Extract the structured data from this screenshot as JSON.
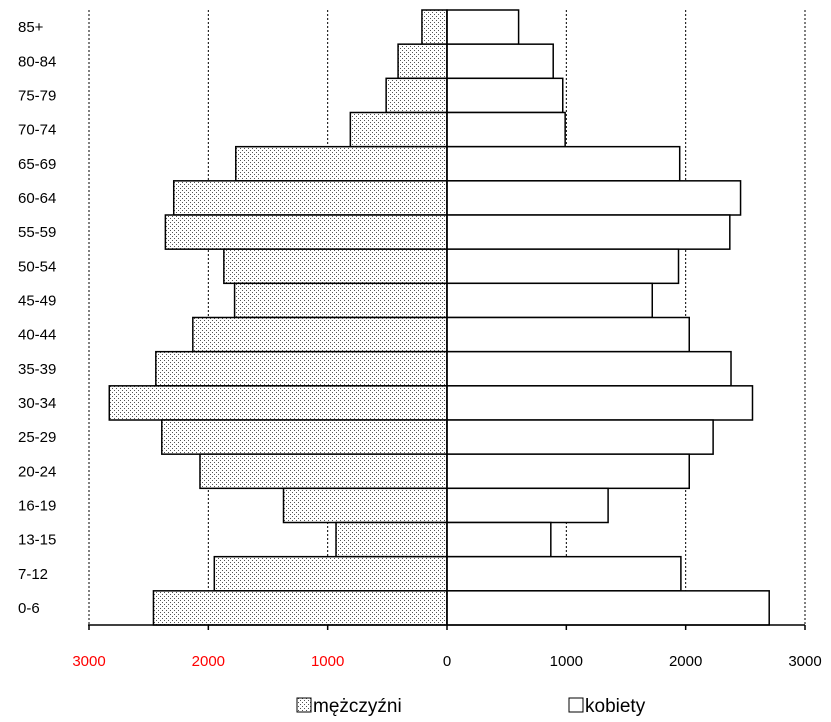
{
  "chart_data": {
    "type": "bar",
    "orientation": "horizontal-population-pyramid",
    "categories": [
      "85+",
      "80-84",
      "75-79",
      "70-74",
      "65-69",
      "60-64",
      "55-59",
      "50-54",
      "45-49",
      "40-44",
      "35-39",
      "30-34",
      "25-29",
      "20-24",
      "16-19",
      "13-15",
      "7-12",
      "0-6"
    ],
    "series": [
      {
        "name": "mężczyźni",
        "side": "left",
        "fill": "dotted",
        "values": [
          210,
          410,
          510,
          810,
          1770,
          2290,
          2360,
          1870,
          1780,
          2130,
          2440,
          2830,
          2390,
          2070,
          1370,
          930,
          1950,
          2460
        ]
      },
      {
        "name": "kobiety",
        "side": "right",
        "fill": "white",
        "values": [
          600,
          890,
          970,
          990,
          1950,
          2460,
          2370,
          1940,
          1720,
          2030,
          2380,
          2560,
          2230,
          2030,
          1350,
          870,
          1960,
          2700
        ]
      }
    ],
    "xlim": [
      -3000,
      3000
    ],
    "x_ticks": [
      {
        "label": "3000",
        "value": -3000,
        "color": "#ff0000"
      },
      {
        "label": "2000",
        "value": -2000,
        "color": "#ff0000"
      },
      {
        "label": "1000",
        "value": -1000,
        "color": "#ff0000"
      },
      {
        "label": "0",
        "value": 0,
        "color": "#000000"
      },
      {
        "label": "1000",
        "value": 1000,
        "color": "#000000"
      },
      {
        "label": "2000",
        "value": 2000,
        "color": "#000000"
      },
      {
        "label": "3000",
        "value": 3000,
        "color": "#000000"
      }
    ],
    "grid": "vertical-dashed",
    "legend": "bottom-center",
    "title": "",
    "xlabel": "",
    "ylabel": ""
  }
}
